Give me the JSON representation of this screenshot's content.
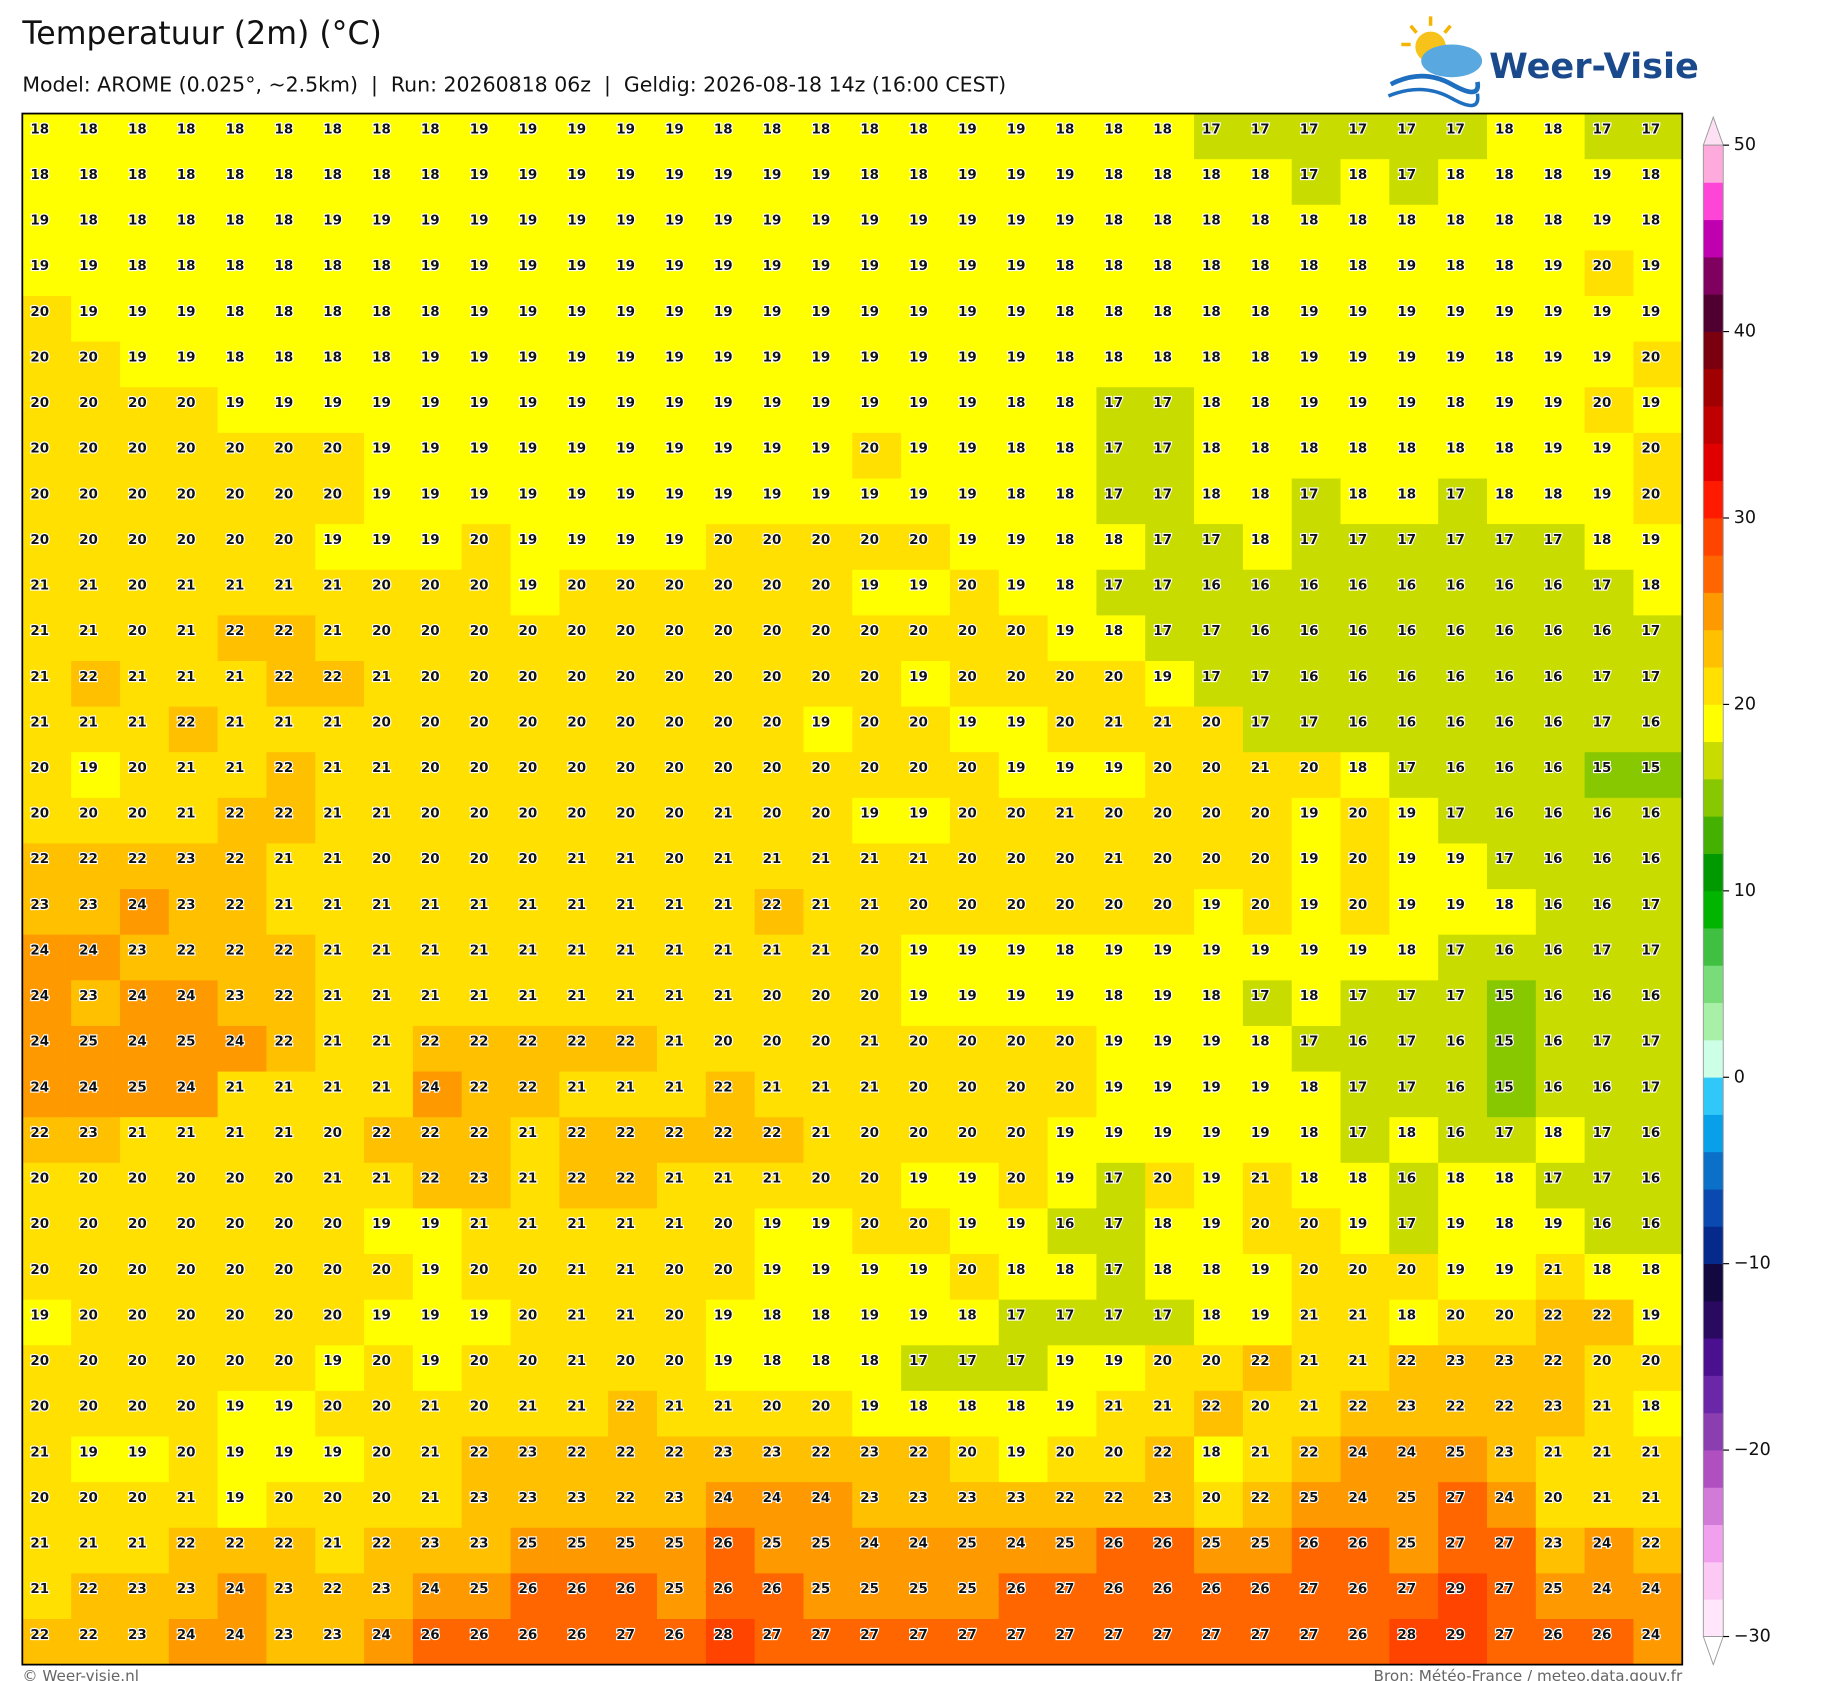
{
  "chart_data": {
    "type": "heatmap",
    "title": "Temperatuur (2m) (°C)",
    "subtitle": "Model: AROME (0.025°, ~2.5km)  |  Run: 20260818 06z  |  Geldig: 2026-08-18 14z (16:00 CEST)",
    "values": [
      [
        18,
        18,
        18,
        18,
        18,
        18,
        18,
        18,
        18,
        19,
        19,
        19,
        19,
        19,
        18,
        18,
        18,
        18,
        18,
        19,
        19,
        18,
        18,
        18,
        17,
        17,
        17,
        17,
        17,
        17,
        18,
        18,
        17,
        17
      ],
      [
        18,
        18,
        18,
        18,
        18,
        18,
        18,
        18,
        18,
        19,
        19,
        19,
        19,
        19,
        19,
        19,
        19,
        18,
        18,
        19,
        19,
        19,
        18,
        18,
        18,
        18,
        17,
        18,
        17,
        18,
        18,
        18,
        19,
        18
      ],
      [
        19,
        18,
        18,
        18,
        18,
        18,
        19,
        19,
        19,
        19,
        19,
        19,
        19,
        19,
        19,
        19,
        19,
        19,
        19,
        19,
        19,
        19,
        18,
        18,
        18,
        18,
        18,
        18,
        18,
        18,
        18,
        18,
        19,
        18
      ],
      [
        19,
        19,
        18,
        18,
        18,
        18,
        18,
        18,
        19,
        19,
        19,
        19,
        19,
        19,
        19,
        19,
        19,
        19,
        19,
        19,
        19,
        18,
        18,
        18,
        18,
        18,
        18,
        18,
        19,
        18,
        18,
        19,
        20,
        19
      ],
      [
        20,
        19,
        19,
        19,
        18,
        18,
        18,
        18,
        18,
        19,
        19,
        19,
        19,
        19,
        19,
        19,
        19,
        19,
        19,
        19,
        19,
        18,
        18,
        18,
        18,
        18,
        19,
        19,
        19,
        19,
        19,
        19,
        19,
        19
      ],
      [
        20,
        20,
        19,
        19,
        18,
        18,
        18,
        18,
        19,
        19,
        19,
        19,
        19,
        19,
        19,
        19,
        19,
        19,
        19,
        19,
        19,
        18,
        18,
        18,
        18,
        18,
        19,
        19,
        19,
        19,
        18,
        19,
        19,
        20
      ],
      [
        20,
        20,
        20,
        20,
        19,
        19,
        19,
        19,
        19,
        19,
        19,
        19,
        19,
        19,
        19,
        19,
        19,
        19,
        19,
        19,
        18,
        18,
        17,
        17,
        18,
        18,
        19,
        19,
        19,
        18,
        19,
        19,
        20,
        19
      ],
      [
        20,
        20,
        20,
        20,
        20,
        20,
        20,
        19,
        19,
        19,
        19,
        19,
        19,
        19,
        19,
        19,
        19,
        20,
        19,
        19,
        18,
        18,
        17,
        17,
        18,
        18,
        18,
        18,
        18,
        18,
        18,
        19,
        19,
        20
      ],
      [
        20,
        20,
        20,
        20,
        20,
        20,
        20,
        19,
        19,
        19,
        19,
        19,
        19,
        19,
        19,
        19,
        19,
        19,
        19,
        19,
        18,
        18,
        17,
        17,
        18,
        18,
        17,
        18,
        18,
        17,
        18,
        18,
        19,
        20
      ],
      [
        20,
        20,
        20,
        20,
        20,
        20,
        19,
        19,
        19,
        20,
        19,
        19,
        19,
        19,
        20,
        20,
        20,
        20,
        20,
        19,
        19,
        18,
        18,
        17,
        17,
        18,
        17,
        17,
        17,
        17,
        17,
        17,
        18,
        19
      ],
      [
        21,
        21,
        20,
        21,
        21,
        21,
        21,
        20,
        20,
        20,
        19,
        20,
        20,
        20,
        20,
        20,
        20,
        19,
        19,
        20,
        19,
        18,
        17,
        17,
        16,
        16,
        16,
        16,
        16,
        16,
        16,
        16,
        17,
        18
      ],
      [
        21,
        21,
        20,
        21,
        22,
        22,
        21,
        20,
        20,
        20,
        20,
        20,
        20,
        20,
        20,
        20,
        20,
        20,
        20,
        20,
        20,
        19,
        18,
        17,
        17,
        16,
        16,
        16,
        16,
        16,
        16,
        16,
        16,
        17
      ],
      [
        21,
        22,
        21,
        21,
        21,
        22,
        22,
        21,
        20,
        20,
        20,
        20,
        20,
        20,
        20,
        20,
        20,
        20,
        19,
        20,
        20,
        20,
        20,
        19,
        17,
        17,
        16,
        16,
        16,
        16,
        16,
        16,
        17,
        17
      ],
      [
        21,
        21,
        21,
        22,
        21,
        21,
        21,
        20,
        20,
        20,
        20,
        20,
        20,
        20,
        20,
        20,
        19,
        20,
        20,
        19,
        19,
        20,
        21,
        21,
        20,
        17,
        17,
        16,
        16,
        16,
        16,
        16,
        17,
        16
      ],
      [
        20,
        19,
        20,
        21,
        21,
        22,
        21,
        21,
        20,
        20,
        20,
        20,
        20,
        20,
        20,
        20,
        20,
        20,
        20,
        20,
        19,
        19,
        19,
        20,
        20,
        21,
        20,
        18,
        17,
        16,
        16,
        16,
        15,
        15
      ],
      [
        20,
        20,
        20,
        21,
        22,
        22,
        21,
        21,
        20,
        20,
        20,
        20,
        20,
        20,
        21,
        20,
        20,
        19,
        19,
        20,
        20,
        21,
        20,
        20,
        20,
        20,
        19,
        20,
        19,
        17,
        16,
        16,
        16,
        16
      ],
      [
        22,
        22,
        22,
        23,
        22,
        21,
        21,
        20,
        20,
        20,
        20,
        21,
        21,
        20,
        21,
        21,
        21,
        21,
        21,
        20,
        20,
        20,
        21,
        20,
        20,
        20,
        19,
        20,
        19,
        19,
        17,
        16,
        16,
        16
      ],
      [
        23,
        23,
        24,
        23,
        22,
        21,
        21,
        21,
        21,
        21,
        21,
        21,
        21,
        21,
        21,
        22,
        21,
        21,
        20,
        20,
        20,
        20,
        20,
        20,
        19,
        20,
        19,
        20,
        19,
        19,
        18,
        16,
        16,
        17
      ],
      [
        24,
        24,
        23,
        22,
        22,
        22,
        21,
        21,
        21,
        21,
        21,
        21,
        21,
        21,
        21,
        21,
        21,
        20,
        19,
        19,
        19,
        18,
        19,
        19,
        19,
        19,
        19,
        19,
        18,
        17,
        16,
        16,
        17,
        17
      ],
      [
        24,
        23,
        24,
        24,
        23,
        22,
        21,
        21,
        21,
        21,
        21,
        21,
        21,
        21,
        21,
        20,
        20,
        20,
        19,
        19,
        19,
        19,
        18,
        19,
        18,
        17,
        18,
        17,
        17,
        17,
        15,
        16,
        16,
        16
      ],
      [
        24,
        25,
        24,
        25,
        24,
        22,
        21,
        21,
        22,
        22,
        22,
        22,
        22,
        21,
        20,
        20,
        20,
        21,
        20,
        20,
        20,
        20,
        19,
        19,
        19,
        18,
        17,
        16,
        17,
        16,
        15,
        16,
        17,
        17
      ],
      [
        24,
        24,
        25,
        24,
        21,
        21,
        21,
        21,
        24,
        22,
        22,
        21,
        21,
        21,
        22,
        21,
        21,
        21,
        20,
        20,
        20,
        20,
        19,
        19,
        19,
        19,
        18,
        17,
        17,
        16,
        15,
        16,
        16,
        17
      ],
      [
        22,
        23,
        21,
        21,
        21,
        21,
        20,
        22,
        22,
        22,
        21,
        22,
        22,
        22,
        22,
        22,
        21,
        20,
        20,
        20,
        20,
        19,
        19,
        19,
        19,
        19,
        18,
        17,
        18,
        16,
        17,
        18,
        17,
        16
      ],
      [
        20,
        20,
        20,
        20,
        20,
        20,
        21,
        21,
        22,
        23,
        21,
        22,
        22,
        21,
        21,
        21,
        20,
        20,
        19,
        19,
        20,
        19,
        17,
        20,
        19,
        21,
        18,
        18,
        16,
        18,
        18,
        17,
        17,
        16
      ],
      [
        20,
        20,
        20,
        20,
        20,
        20,
        20,
        19,
        19,
        21,
        21,
        21,
        21,
        21,
        20,
        19,
        19,
        20,
        20,
        19,
        19,
        16,
        17,
        18,
        19,
        20,
        20,
        19,
        17,
        19,
        18,
        19,
        16,
        16
      ],
      [
        20,
        20,
        20,
        20,
        20,
        20,
        20,
        20,
        19,
        20,
        20,
        21,
        21,
        20,
        20,
        19,
        19,
        19,
        19,
        20,
        18,
        18,
        17,
        18,
        18,
        19,
        20,
        20,
        20,
        19,
        19,
        21,
        18,
        18
      ],
      [
        19,
        20,
        20,
        20,
        20,
        20,
        20,
        19,
        19,
        19,
        20,
        21,
        21,
        20,
        19,
        18,
        18,
        19,
        19,
        18,
        17,
        17,
        17,
        17,
        18,
        19,
        21,
        21,
        18,
        20,
        20,
        22,
        22,
        19
      ],
      [
        20,
        20,
        20,
        20,
        20,
        20,
        19,
        20,
        19,
        20,
        20,
        21,
        20,
        20,
        19,
        18,
        18,
        18,
        17,
        17,
        17,
        19,
        19,
        20,
        20,
        22,
        21,
        21,
        22,
        23,
        23,
        22,
        20,
        20
      ],
      [
        20,
        20,
        20,
        20,
        19,
        19,
        20,
        20,
        21,
        20,
        21,
        21,
        22,
        21,
        21,
        20,
        20,
        19,
        18,
        18,
        18,
        19,
        21,
        21,
        22,
        20,
        21,
        22,
        23,
        22,
        22,
        23,
        21,
        18
      ],
      [
        21,
        19,
        19,
        20,
        19,
        19,
        19,
        20,
        21,
        22,
        23,
        22,
        22,
        22,
        23,
        23,
        22,
        23,
        22,
        20,
        19,
        20,
        20,
        22,
        18,
        21,
        22,
        24,
        24,
        25,
        23,
        21,
        21,
        21
      ],
      [
        20,
        20,
        20,
        21,
        19,
        20,
        20,
        20,
        21,
        23,
        23,
        23,
        22,
        23,
        24,
        24,
        24,
        23,
        23,
        23,
        23,
        22,
        22,
        23,
        20,
        22,
        25,
        24,
        25,
        27,
        24,
        20,
        21,
        21
      ],
      [
        21,
        21,
        21,
        22,
        22,
        22,
        21,
        22,
        23,
        23,
        25,
        25,
        25,
        25,
        26,
        25,
        25,
        24,
        24,
        25,
        24,
        25,
        26,
        26,
        25,
        25,
        26,
        26,
        25,
        27,
        27,
        23,
        24,
        22
      ],
      [
        21,
        22,
        23,
        23,
        24,
        23,
        22,
        23,
        24,
        25,
        26,
        26,
        26,
        25,
        26,
        26,
        25,
        25,
        25,
        25,
        26,
        27,
        26,
        26,
        26,
        26,
        27,
        26,
        27,
        29,
        27,
        25,
        24,
        24
      ],
      [
        22,
        22,
        23,
        24,
        24,
        23,
        23,
        24,
        26,
        26,
        26,
        26,
        27,
        26,
        28,
        27,
        27,
        27,
        27,
        27,
        27,
        27,
        27,
        27,
        27,
        27,
        27,
        26,
        28,
        29,
        27,
        26,
        26,
        24
      ]
    ],
    "colorbar": {
      "lim": [
        -30,
        50
      ],
      "ticks": [
        {
          "value": -30,
          "label": "−30"
        },
        {
          "value": -20,
          "label": "−20"
        },
        {
          "value": -10,
          "label": "−10"
        },
        0,
        10,
        20,
        30,
        40,
        50
      ],
      "colors": [
        "#ffe6fa",
        "#fcc8f4",
        "#f0a0ec",
        "#d27ad8",
        "#b050c0",
        "#8a3eb0",
        "#6a28a8",
        "#4a1090",
        "#2a0a60",
        "#140840",
        "#052a8c",
        "#0a4ab0",
        "#0a70c8",
        "#08a0e8",
        "#30c8f8",
        "#ccffe6",
        "#a8f0a8",
        "#78dc78",
        "#40c040",
        "#00b400",
        "#009a00",
        "#44b000",
        "#88c800",
        "#c8dc00",
        "#ffff00",
        "#ffe000",
        "#ffc000",
        "#ff9900",
        "#ff6600",
        "#ff4400",
        "#ff1a00",
        "#e00000",
        "#c00000",
        "#a00000",
        "#7a0010",
        "#500030",
        "#800060",
        "#c000b0",
        "#ff44d8",
        "#ffaadd"
      ]
    }
  },
  "logo": "Weer-Visie",
  "footer": {
    "left": "© Weer-visie.nl",
    "right": "Bron: Météo-France / meteo.data.gouv.fr"
  }
}
